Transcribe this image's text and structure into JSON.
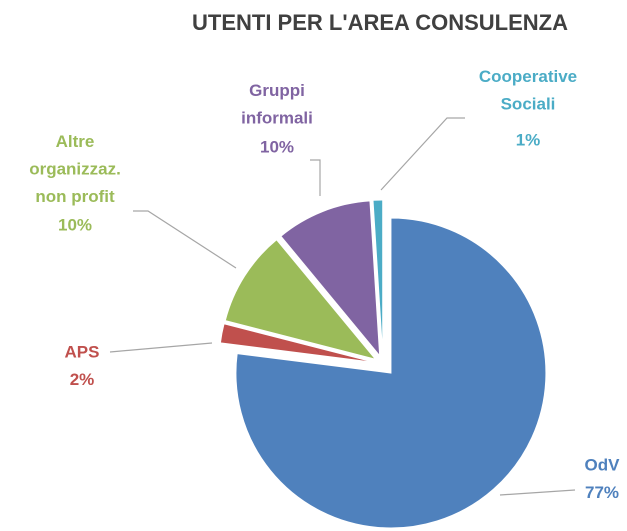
{
  "chart_data": {
    "type": "pie",
    "title": "UTENTI PER L'AREA CONSULENZA",
    "categories": [
      "OdV",
      "APS",
      "Altre\norganizzaz.\nnon profit",
      "Gruppi\ninformali",
      "Cooperative\nSociali"
    ],
    "values": [
      77,
      2,
      10,
      10,
      1
    ],
    "value_labels": [
      "77%",
      "2%",
      "10%",
      "10%",
      "1%"
    ],
    "colors": [
      "#4f81bd",
      "#c0504d",
      "#9bbb59",
      "#8064a2",
      "#4bacc6"
    ]
  }
}
